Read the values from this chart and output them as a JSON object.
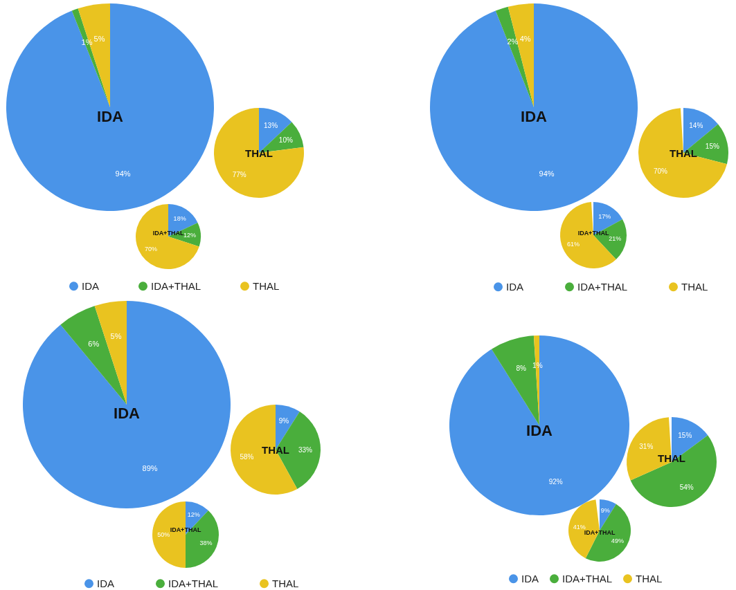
{
  "chart_data": [
    {
      "type": "pie",
      "categories": [
        "IDA",
        "IDA+THAL",
        "THAL"
      ],
      "colors": [
        "#4a94e8",
        "#4aae3c",
        "#e9c320"
      ],
      "legend": "bottom",
      "series": [
        {
          "name": "IDA",
          "values": [
            94,
            1,
            5
          ],
          "value_labels": [
            "94%",
            "1%",
            "5%"
          ]
        },
        {
          "name": "THAL",
          "values": [
            13,
            10,
            77
          ],
          "value_labels": [
            "13%",
            "10%",
            "77%"
          ]
        },
        {
          "name": "IDA+THAL",
          "values": [
            18,
            12,
            70
          ],
          "value_labels": [
            "18%",
            "12%",
            "70%"
          ]
        }
      ]
    },
    {
      "type": "pie",
      "categories": [
        "IDA",
        "IDA+THAL",
        "THAL"
      ],
      "colors": [
        "#4a94e8",
        "#4aae3c",
        "#e9c320"
      ],
      "legend": "bottom",
      "series": [
        {
          "name": "IDA",
          "values": [
            94,
            2,
            4
          ],
          "value_labels": [
            "94%",
            "2%",
            "4%"
          ]
        },
        {
          "name": "THAL",
          "values": [
            14,
            15,
            70
          ],
          "value_labels": [
            "14%",
            "15%",
            "70%"
          ]
        },
        {
          "name": "IDA+THAL",
          "values": [
            17,
            21,
            61
          ],
          "value_labels": [
            "17%",
            "21%",
            "61%"
          ]
        }
      ]
    },
    {
      "type": "pie",
      "categories": [
        "IDA",
        "IDA+THAL",
        "THAL"
      ],
      "colors": [
        "#4a94e8",
        "#4aae3c",
        "#e9c320"
      ],
      "legend": "bottom",
      "series": [
        {
          "name": "IDA",
          "values": [
            89,
            6,
            5
          ],
          "value_labels": [
            "89%",
            "6%",
            "5%"
          ]
        },
        {
          "name": "THAL",
          "values": [
            9,
            33,
            58
          ],
          "value_labels": [
            "9%",
            "33%",
            "58%"
          ]
        },
        {
          "name": "IDA+THAL",
          "values": [
            12,
            38,
            50
          ],
          "value_labels": [
            "12%",
            "38%",
            "50%"
          ]
        }
      ]
    },
    {
      "type": "pie",
      "categories": [
        "IDA",
        "IDA+THAL",
        "THAL"
      ],
      "colors": [
        "#4a94e8",
        "#4aae3c",
        "#e9c320"
      ],
      "legend": "bottom",
      "series": [
        {
          "name": "IDA",
          "values": [
            92,
            8,
            1
          ],
          "value_labels": [
            "92%",
            "8%",
            "1%"
          ]
        },
        {
          "name": "THAL",
          "values": [
            15,
            54,
            31
          ],
          "value_labels": [
            "15%",
            "54%",
            "31%"
          ]
        },
        {
          "name": "IDA+THAL",
          "values": [
            9,
            49,
            41
          ],
          "value_labels": [
            "9%",
            "49%",
            "41%"
          ]
        }
      ]
    }
  ]
}
